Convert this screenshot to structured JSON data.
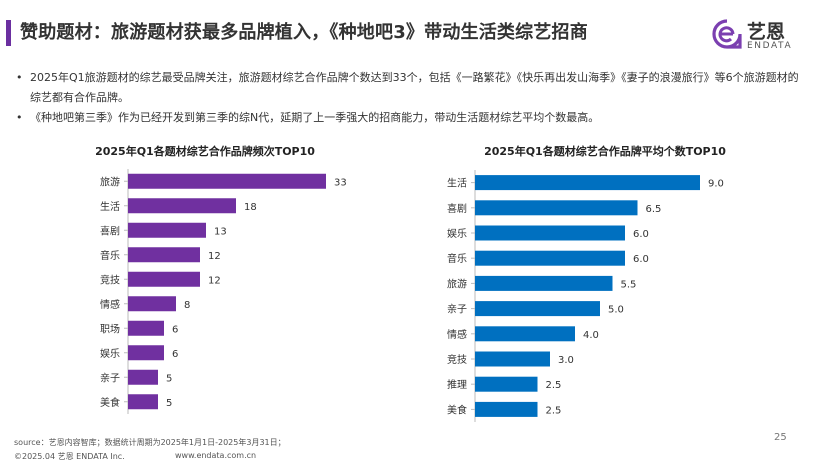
{
  "header": {
    "title": "赞助题材：旅游题材获最多品牌植入，《种地吧3》带动生活类综艺招商",
    "accent_color": "#6b2fa0"
  },
  "logo": {
    "name": "艺恩",
    "sub": "ENDATA",
    "icon": "endata-logo-icon"
  },
  "bullets": [
    "2025年Q1旅游题材的综艺最受品牌关注，旅游题材综艺合作品牌个数达到33个，包括《一路繁花》《快乐再出发山海季》《妻子的浪漫旅行》等6个旅游题材的综艺都有合作品牌。",
    "《种地吧第三季》作为已经开发到第三季的综N代，延期了上一季强大的招商能力，带动生活题材综艺平均个数最高。"
  ],
  "chart_data": [
    {
      "type": "bar",
      "orientation": "horizontal",
      "title": "2025年Q1各题材综艺合作品牌频次TOP10",
      "categories": [
        "旅游",
        "生活",
        "喜剧",
        "音乐",
        "竞技",
        "情感",
        "职场",
        "娱乐",
        "亲子",
        "美食"
      ],
      "values": [
        33,
        18,
        13,
        12,
        12,
        8,
        6,
        6,
        5,
        5
      ],
      "value_labels": [
        "33",
        "18",
        "13",
        "12",
        "12",
        "8",
        "6",
        "6",
        "5",
        "5"
      ],
      "xlim": [
        0,
        36
      ],
      "color": "#7030a0",
      "grid": false
    },
    {
      "type": "bar",
      "orientation": "horizontal",
      "title": "2025年Q1各题材综艺合作品牌平均个数TOP10",
      "categories": [
        "生活",
        "喜剧",
        "娱乐",
        "音乐",
        "旅游",
        "亲子",
        "情感",
        "竞技",
        "推理",
        "美食"
      ],
      "values": [
        9.0,
        6.5,
        6.0,
        6.0,
        5.5,
        5.0,
        4.0,
        3.0,
        2.5,
        2.5
      ],
      "value_labels": [
        "9.0",
        "6.5",
        "6.0",
        "6.0",
        "5.5",
        "5.0",
        "4.0",
        "3.0",
        "2.5",
        "2.5"
      ],
      "xlim": [
        0,
        10
      ],
      "color": "#0070c0",
      "grid": false
    }
  ],
  "footer": {
    "source": "source：艺恩内容智库；数据统计周期为2025年1月1日-2025年3月31日；",
    "copyright": "©2025.04 艺恩 ENDATA Inc.",
    "url": "www.endata.com.cn",
    "page_number": "25"
  }
}
